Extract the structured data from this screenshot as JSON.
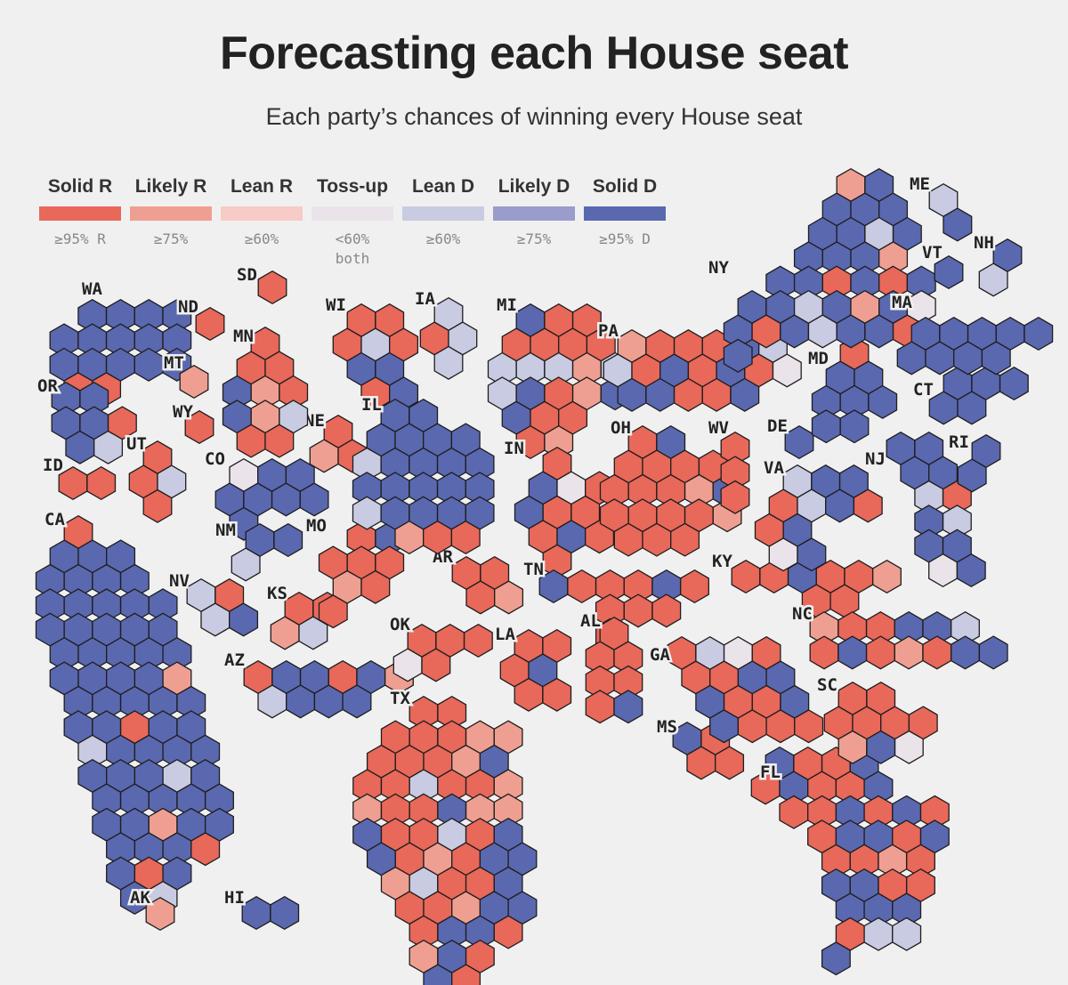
{
  "title": "Forecasting each House seat",
  "subtitle": "Each party’s chances of winning every House seat",
  "legend": [
    {
      "name": "Solid R",
      "note": "≥95% R",
      "note2": "",
      "color": "#e8685a"
    },
    {
      "name": "Likely R",
      "note": "≥75%",
      "note2": "",
      "color": "#ef9f91"
    },
    {
      "name": "Lean R",
      "note": "≥60%",
      "note2": "",
      "color": "#f7cbc6"
    },
    {
      "name": "Toss-up",
      "note": "<60%",
      "note2": "both",
      "color": "#ebe3ea"
    },
    {
      "name": "Lean D",
      "note": "≥60%",
      "note2": "",
      "color": "#c9cbe2"
    },
    {
      "name": "Likely D",
      "note": "≥75%",
      "note2": "",
      "color": "#9a9ccb"
    },
    {
      "name": "Solid D",
      "note": "≥95% D",
      "note2": "",
      "color": "#5a68b0"
    }
  ],
  "states": [
    {
      "abbr": "WA",
      "seats": [
        "D",
        "D",
        "D",
        "D",
        "D",
        "D",
        "D",
        "D",
        "D",
        "D",
        "D",
        "D",
        "D",
        "D",
        "R",
        "R"
      ]
    },
    {
      "abbr": "OR",
      "seats": [
        "D",
        "D",
        "D",
        "D",
        "R",
        "D",
        "LD"
      ]
    },
    {
      "abbr": "ID",
      "seats": [
        "R",
        "R"
      ]
    },
    {
      "abbr": "CA",
      "seats": [
        "R",
        "D",
        "D",
        "D",
        "D",
        "D",
        "D",
        "D",
        "D",
        "D",
        "D",
        "D",
        "D",
        "D",
        "D",
        "D",
        "D",
        "D",
        "D",
        "D",
        "D",
        "D",
        "D",
        "D",
        "D",
        "D",
        "D",
        "LR",
        "D",
        "D",
        "D",
        "D",
        "D",
        "D",
        "D",
        "R",
        "D",
        "D",
        "LD",
        "D",
        "D",
        "D",
        "D",
        "D",
        "D",
        "D",
        "LD",
        "D",
        "D",
        "D",
        "D",
        "D",
        "D",
        "D",
        "D",
        "LR",
        "D",
        "D",
        "D",
        "D",
        "D",
        "R",
        "D",
        "R",
        "D",
        "D",
        "LD",
        "D",
        "R",
        "D",
        "D",
        "D",
        "D",
        "D",
        "D",
        "D",
        "D",
        "LD",
        "D",
        "D",
        "D",
        "D",
        "D",
        "D",
        "D",
        "D",
        "D",
        "D",
        "D",
        "D",
        "D",
        "D",
        "D",
        "LR",
        "D",
        "D",
        "D",
        "D",
        "LR",
        "D",
        "D",
        "D",
        "D",
        "R",
        "D",
        "D",
        "LD",
        "D",
        "LD",
        "D",
        "D",
        "D",
        "D",
        "D",
        "D",
        "D",
        "D",
        "D",
        "D",
        "D",
        "D"
      ]
    },
    {
      "abbr": "AK",
      "seats": [
        "LR"
      ]
    },
    {
      "abbr": "HI",
      "seats": [
        "D",
        "D"
      ]
    },
    {
      "abbr": "NV",
      "seats": [
        "LD",
        "R",
        "LD",
        "D"
      ]
    },
    {
      "abbr": "UT",
      "seats": [
        "R",
        "R",
        "LD",
        "R"
      ]
    },
    {
      "abbr": "AZ",
      "seats": [
        "R",
        "D",
        "D",
        "R",
        "D",
        "LR",
        "LD",
        "D",
        "D",
        "D"
      ]
    },
    {
      "abbr": "MT",
      "seats": [
        "LR"
      ]
    },
    {
      "abbr": "WY",
      "seats": [
        "R"
      ]
    },
    {
      "abbr": "CO",
      "seats": [
        "T",
        "D",
        "D",
        "D",
        "D",
        "D",
        "D",
        "D"
      ]
    },
    {
      "abbr": "NM",
      "seats": [
        "D",
        "D",
        "LD"
      ]
    },
    {
      "abbr": "ND",
      "seats": [
        "R"
      ]
    },
    {
      "abbr": "SD",
      "seats": [
        "R"
      ]
    },
    {
      "abbr": "NE",
      "seats": [
        "R",
        "LR",
        "R"
      ]
    },
    {
      "abbr": "KS",
      "seats": [
        "R",
        "R",
        "LR",
        "LD"
      ]
    },
    {
      "abbr": "OK",
      "seats": [
        "R",
        "R",
        "R",
        "T",
        "R"
      ]
    },
    {
      "abbr": "TX",
      "seats": [
        "R",
        "R",
        "R",
        "R",
        "R",
        "LR",
        "LR",
        "R",
        "R",
        "R",
        "LR",
        "D",
        "R",
        "R",
        "LD",
        "R",
        "R",
        "LR",
        "LR",
        "R",
        "R",
        "D",
        "LR",
        "LR",
        "D",
        "R",
        "R",
        "LD",
        "R",
        "D",
        "D",
        "R",
        "LR",
        "R",
        "D",
        "D",
        "LR",
        "LD",
        "R",
        "R",
        "D",
        "R",
        "R",
        "LR",
        "D",
        "D",
        "R",
        "D",
        "D",
        "R",
        "LR",
        "D",
        "R",
        "D",
        "R",
        "R"
      ]
    },
    {
      "abbr": "MN",
      "seats": [
        "R",
        "R",
        "R",
        "D",
        "LR",
        "R",
        "D",
        "LR",
        "LD",
        "R",
        "R"
      ]
    },
    {
      "abbr": "IA",
      "seats": [
        "LD",
        "R",
        "LD",
        "LD"
      ]
    },
    {
      "abbr": "MO",
      "seats": [
        "R",
        "D",
        "R",
        "R",
        "R",
        "LR",
        "R",
        "R"
      ]
    },
    {
      "abbr": "AR",
      "seats": [
        "R",
        "R",
        "R",
        "LR"
      ]
    },
    {
      "abbr": "LA",
      "seats": [
        "R",
        "R",
        "R",
        "D",
        "R",
        "R"
      ]
    },
    {
      "abbr": "WI",
      "seats": [
        "R",
        "R",
        "R",
        "LD",
        "R",
        "D",
        "D",
        "R",
        "D"
      ]
    },
    {
      "abbr": "IL",
      "seats": [
        "D",
        "D",
        "D",
        "D",
        "D",
        "D",
        "LD",
        "D",
        "D",
        "D",
        "D",
        "D",
        "D",
        "D",
        "D",
        "D",
        "LD",
        "D",
        "D",
        "D",
        "D",
        "LR",
        "R",
        "R"
      ]
    },
    {
      "abbr": "MI",
      "seats": [
        "D",
        "R",
        "R",
        "R",
        "R",
        "R",
        "R",
        "LD",
        "LD",
        "LD",
        "LR",
        "LD",
        "LD",
        "D",
        "R",
        "LR",
        "D",
        "D",
        "R",
        "R",
        "R",
        "LR"
      ]
    },
    {
      "abbr": "IN",
      "seats": [
        "R",
        "D",
        "T",
        "R",
        "D",
        "R",
        "R",
        "R",
        "D",
        "R",
        "R"
      ]
    },
    {
      "abbr": "OH",
      "seats": [
        "R",
        "D",
        "R",
        "R",
        "R",
        "R",
        "R",
        "R",
        "R",
        "LR",
        "D",
        "R",
        "R",
        "R",
        "R",
        "LR",
        "R",
        "R",
        "R"
      ]
    },
    {
      "abbr": "KY",
      "seats": [
        "R",
        "R",
        "D",
        "R",
        "R",
        "LR",
        "R",
        "R"
      ]
    },
    {
      "abbr": "TN",
      "seats": [
        "D",
        "R",
        "R",
        "R",
        "D",
        "R",
        "R",
        "R",
        "R",
        "R"
      ]
    },
    {
      "abbr": "MS",
      "seats": [
        "D",
        "R",
        "R",
        "R"
      ]
    },
    {
      "abbr": "AL",
      "seats": [
        "R",
        "R",
        "R",
        "R",
        "R",
        "R",
        "D"
      ]
    },
    {
      "abbr": "GA",
      "seats": [
        "R",
        "LD",
        "T",
        "R",
        "R",
        "R",
        "D",
        "D",
        "D",
        "R",
        "R",
        "D",
        "D",
        "R",
        "R",
        "R"
      ]
    },
    {
      "abbr": "FL",
      "seats": [
        "D",
        "R",
        "R",
        "D",
        "R",
        "D",
        "R",
        "R",
        "D",
        "R",
        "R",
        "D",
        "R",
        "D",
        "R",
        "R",
        "D",
        "D",
        "R",
        "D",
        "R",
        "R",
        "LR",
        "R",
        "D",
        "D",
        "R",
        "R",
        "D",
        "D",
        "D",
        "R",
        "LD",
        "LD",
        "D"
      ]
    },
    {
      "abbr": "SC",
      "seats": [
        "R",
        "R",
        "R",
        "R",
        "R",
        "R",
        "LR",
        "D",
        "T"
      ]
    },
    {
      "abbr": "NC",
      "seats": [
        "LR",
        "R",
        "R",
        "D",
        "D",
        "LD",
        "R",
        "D",
        "R",
        "LR",
        "R",
        "D",
        "D"
      ]
    },
    {
      "abbr": "VA",
      "seats": [
        "LD",
        "D",
        "D",
        "R",
        "LD",
        "D",
        "R",
        "R",
        "D",
        "T",
        "D"
      ]
    },
    {
      "abbr": "WV",
      "seats": [
        "R",
        "R",
        "R"
      ]
    },
    {
      "abbr": "DE",
      "seats": [
        "D"
      ]
    },
    {
      "abbr": "MD",
      "seats": [
        "R",
        "D",
        "D",
        "D",
        "D",
        "D",
        "D",
        "D"
      ]
    },
    {
      "abbr": "PA",
      "seats": [
        "LR",
        "R",
        "R",
        "R",
        "D",
        "LD",
        "LD",
        "R",
        "D",
        "R",
        "D",
        "R",
        "T",
        "D",
        "D",
        "R",
        "R",
        "D"
      ]
    },
    {
      "abbr": "NJ",
      "seats": [
        "D",
        "D",
        "D",
        "D",
        "LD",
        "R",
        "D",
        "LD",
        "D",
        "D",
        "T",
        "D"
      ]
    },
    {
      "abbr": "NY",
      "seats": [
        "LR",
        "D",
        "D",
        "D",
        "D",
        "D",
        "D",
        "LD",
        "D",
        "D",
        "D",
        "D",
        "LR",
        "D",
        "D",
        "R",
        "D",
        "R",
        "D",
        "D",
        "D",
        "LD",
        "D",
        "LR",
        "D",
        "T",
        "D",
        "R",
        "D",
        "LD",
        "D",
        "D",
        "R",
        "D"
      ]
    },
    {
      "abbr": "CT",
      "seats": [
        "D",
        "D",
        "D",
        "D",
        "D"
      ]
    },
    {
      "abbr": "RI",
      "seats": [
        "D",
        "D"
      ]
    },
    {
      "abbr": "MA",
      "seats": [
        "D",
        "D",
        "D",
        "D",
        "D",
        "D",
        "D",
        "D",
        "D"
      ]
    },
    {
      "abbr": "VT",
      "seats": [
        "D"
      ]
    },
    {
      "abbr": "NH",
      "seats": [
        "D",
        "LD"
      ]
    },
    {
      "abbr": "ME",
      "seats": [
        "LD",
        "D"
      ]
    }
  ]
}
